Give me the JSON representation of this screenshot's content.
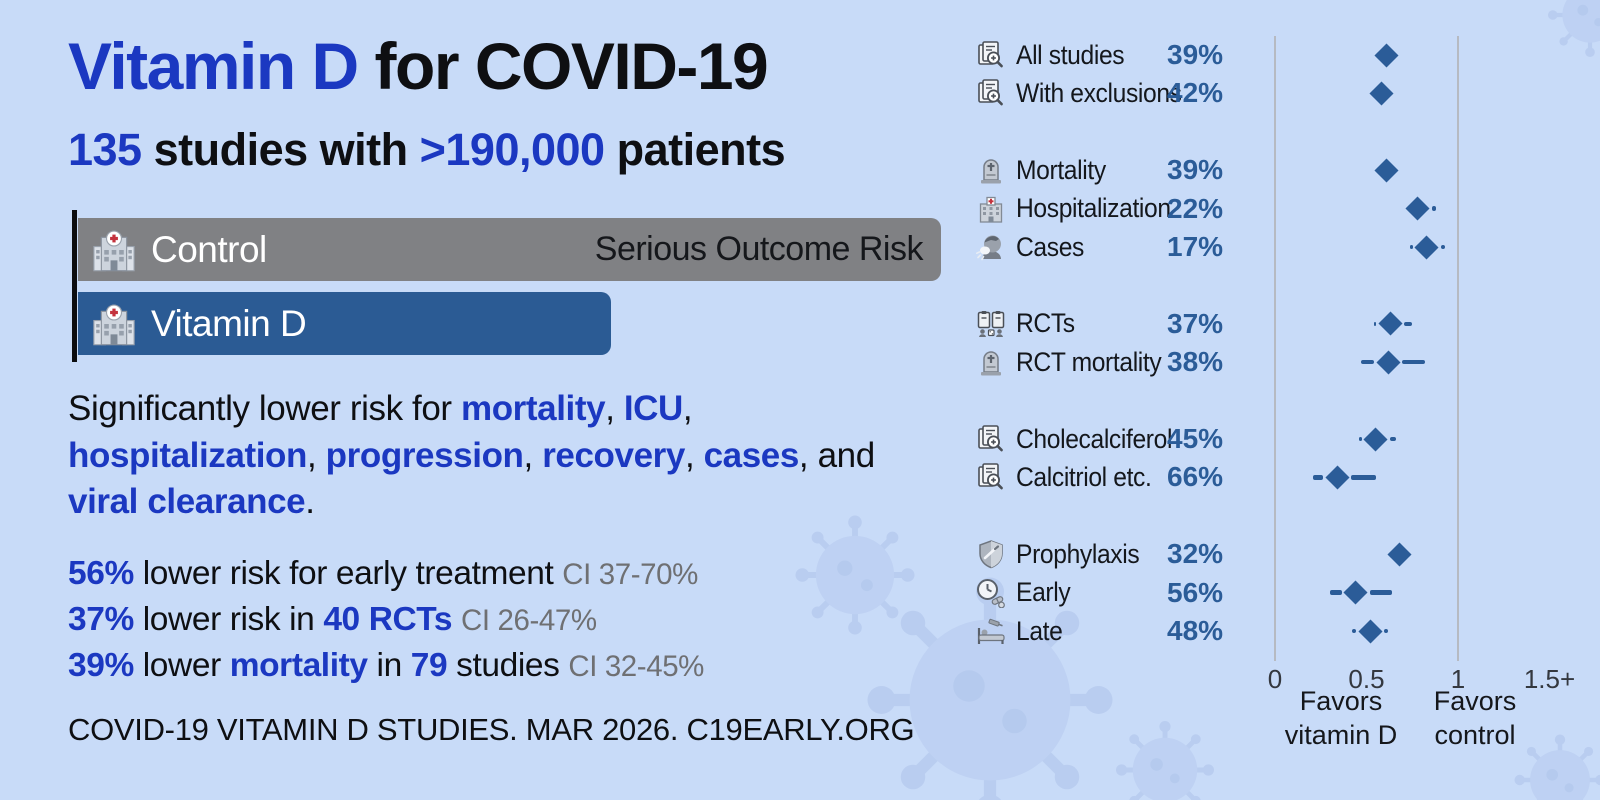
{
  "colors": {
    "background": "#c8dbf8",
    "accent_blue": "#1b38c1",
    "steel_blue": "#2b5c98",
    "bar_gray": "#808184",
    "ci_text_gray": "#6f7073"
  },
  "header": {
    "title": [
      {
        "t": "Vitamin D",
        "s": "blue"
      },
      {
        "t": " for COVID-19",
        "s": "black"
      }
    ],
    "subtitle": [
      {
        "t": "135",
        "s": "blue"
      },
      {
        "t": " studies with ",
        "s": "black"
      },
      {
        "t": ">190,000",
        "s": "blue"
      },
      {
        "t": " patients",
        "s": "black"
      }
    ]
  },
  "bars": {
    "axis_note": "Serious Outcome Risk",
    "control": {
      "label": "Control",
      "icon": "hospital-icon",
      "width_pct": 100
    },
    "vitamin_d": {
      "label": "Vitamin D",
      "icon": "hospital-icon",
      "width_pct": 62
    }
  },
  "paragraph_lines": [
    [
      {
        "t": "Significantly lower risk for ",
        "s": "black"
      },
      {
        "t": "mortality",
        "s": "blue"
      },
      {
        "t": ", ",
        "s": "black"
      },
      {
        "t": "ICU",
        "s": "blue"
      },
      {
        "t": ",",
        "s": "black"
      }
    ],
    [
      {
        "t": "hospitalization",
        "s": "blue"
      },
      {
        "t": ", ",
        "s": "black"
      },
      {
        "t": "progression",
        "s": "blue"
      },
      {
        "t": ", ",
        "s": "black"
      },
      {
        "t": "recovery",
        "s": "blue"
      },
      {
        "t": ", ",
        "s": "black"
      },
      {
        "t": "cases",
        "s": "blue"
      },
      {
        "t": ", and",
        "s": "black"
      }
    ],
    [
      {
        "t": "viral clearance",
        "s": "blue"
      },
      {
        "t": ".",
        "s": "black"
      }
    ]
  ],
  "stats_lines": [
    [
      {
        "t": "56%",
        "s": "blue"
      },
      {
        "t": " lower risk for early treatment ",
        "s": "black"
      },
      {
        "t": "CI 37-70%",
        "s": "gray"
      }
    ],
    [
      {
        "t": "37%",
        "s": "blue"
      },
      {
        "t": " lower risk in ",
        "s": "black"
      },
      {
        "t": "40 RCTs",
        "s": "blue"
      },
      {
        "t": " ",
        "s": "black"
      },
      {
        "t": "CI 26-47%",
        "s": "gray"
      }
    ],
    [
      {
        "t": "39%",
        "s": "blue"
      },
      {
        "t": " lower ",
        "s": "black"
      },
      {
        "t": "mortality",
        "s": "blue"
      },
      {
        "t": " in ",
        "s": "black"
      },
      {
        "t": "79",
        "s": "blue"
      },
      {
        "t": " studies ",
        "s": "black"
      },
      {
        "t": "CI 32-45%",
        "s": "gray"
      }
    ]
  ],
  "footer": {
    "text": "COVID-19 VITAMIN D STUDIES. MAR 2026. C19EARLY.ORG"
  },
  "chart_data": {
    "type": "scatter",
    "subtype": "forest-plot",
    "marker": "diamond",
    "marker_color": "#2b5c98",
    "x_axis": {
      "range": [
        0,
        1.75
      ],
      "ticks": [
        {
          "label": "0",
          "rr": 0
        },
        {
          "label": "0.5",
          "rr": 0.5
        },
        {
          "label": "1",
          "rr": 1
        },
        {
          "label": "1.5+",
          "rr": 1.5
        }
      ],
      "gridlines": [
        0,
        1
      ],
      "favors_left": [
        "Favors",
        "vitamin D"
      ],
      "favors_right": [
        "Favors",
        "control"
      ]
    },
    "groups": [
      [
        {
          "icon": "studies-search-icon",
          "label": "All studies",
          "pct": "39%",
          "rr": 0.61,
          "ci": null
        },
        {
          "icon": "studies-search-icon",
          "label": "With exclusions",
          "pct": "42%",
          "rr": 0.58,
          "ci": null
        }
      ],
      [
        {
          "icon": "mortality-icon",
          "label": "Mortality",
          "pct": "39%",
          "rr": 0.61,
          "ci": null
        },
        {
          "icon": "hospitalization-icon",
          "label": "Hospitalization",
          "pct": "22%",
          "rr": 0.78,
          "ci": [
            0.7,
            0.88
          ]
        },
        {
          "icon": "cases-icon",
          "label": "Cases",
          "pct": "17%",
          "rr": 0.83,
          "ci": [
            0.74,
            0.93
          ]
        }
      ],
      [
        {
          "icon": "rct-icon",
          "label": "RCTs",
          "pct": "37%",
          "rr": 0.63,
          "ci": [
            0.54,
            0.75
          ]
        },
        {
          "icon": "mortality-icon",
          "label": "RCT mortality",
          "pct": "38%",
          "rr": 0.62,
          "ci": [
            0.47,
            0.82
          ]
        }
      ],
      [
        {
          "icon": "studies-search-icon",
          "label": "Cholecalciferol",
          "pct": "45%",
          "rr": 0.55,
          "ci": [
            0.46,
            0.66
          ]
        },
        {
          "icon": "studies-search-icon",
          "label": "Calcitriol etc.",
          "pct": "66%",
          "rr": 0.34,
          "ci": [
            0.21,
            0.55
          ]
        }
      ],
      [
        {
          "icon": "prophylaxis-icon",
          "label": "Prophylaxis",
          "pct": "32%",
          "rr": 0.68,
          "ci": null
        },
        {
          "icon": "early-icon",
          "label": "Early",
          "pct": "56%",
          "rr": 0.44,
          "ci": [
            0.3,
            0.64
          ]
        },
        {
          "icon": "late-icon",
          "label": "Late",
          "pct": "48%",
          "rr": 0.52,
          "ci": [
            0.42,
            0.62
          ]
        }
      ]
    ]
  }
}
